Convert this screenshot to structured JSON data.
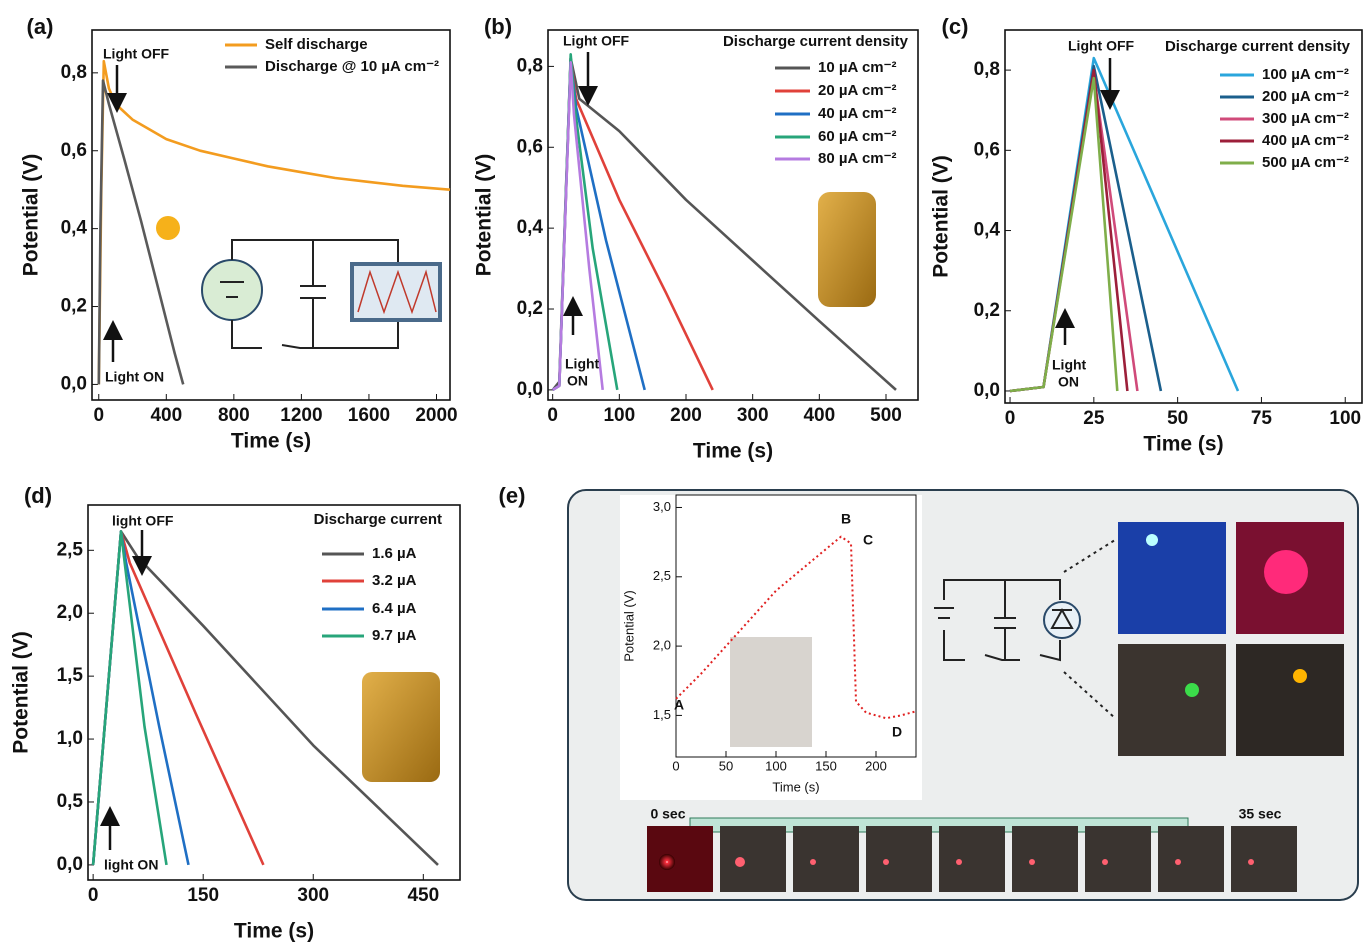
{
  "chart_data": [
    {
      "type": "line",
      "panel": "(a)",
      "x_label": "Time (s)",
      "y_label": "Potential (V)",
      "xlim": [
        -40,
        2080
      ],
      "ylim": [
        -0.04,
        0.91
      ],
      "xticks": [
        0,
        400,
        800,
        1200,
        1600,
        2000
      ],
      "yticks": [
        {
          "value": 0,
          "label": "0,0"
        },
        {
          "value": 0.2,
          "label": "0,2"
        },
        {
          "value": 0.4,
          "label": "0,4"
        },
        {
          "value": 0.6,
          "label": "0,6"
        },
        {
          "value": 0.8,
          "label": "0,8"
        }
      ],
      "series": [
        {
          "name": "Self discharge",
          "color": "#f39c1f",
          "x": [
            0,
            15,
            30,
            60,
            100,
            200,
            400,
            600,
            800,
            1000,
            1200,
            1400,
            1600,
            1800,
            2080
          ],
          "values": [
            0,
            0.5,
            0.83,
            0.76,
            0.72,
            0.68,
            0.63,
            0.6,
            0.58,
            0.56,
            0.545,
            0.53,
            0.52,
            0.51,
            0.5
          ]
        },
        {
          "name": "Discharge @ 10 µA cm⁻²",
          "color": "#5a5a5a",
          "x": [
            0,
            10,
            25,
            60,
            150,
            250,
            350,
            450,
            500
          ],
          "values": [
            0,
            0.4,
            0.78,
            0.72,
            0.58,
            0.42,
            0.25,
            0.08,
            0
          ]
        }
      ],
      "annotations": [
        "Light OFF",
        "Light ON"
      ]
    },
    {
      "type": "line",
      "panel": "(b)",
      "x_label": "Time (s)",
      "y_label": "Potential (V)",
      "xlim": [
        -7,
        548
      ],
      "ylim": [
        -0.025,
        0.89
      ],
      "xticks": [
        0,
        100,
        200,
        300,
        400,
        500
      ],
      "yticks": [
        {
          "value": 0,
          "label": "0,0"
        },
        {
          "value": 0.2,
          "label": "0,2"
        },
        {
          "value": 0.4,
          "label": "0,4"
        },
        {
          "value": 0.6,
          "label": "0,6"
        },
        {
          "value": 0.8,
          "label": "0,8"
        }
      ],
      "legend_title": "Discharge current density",
      "series": [
        {
          "name": "10 µA cm⁻²",
          "color": "#555555",
          "x": [
            0,
            10,
            20,
            27,
            40,
            100,
            200,
            300,
            400,
            515
          ],
          "values": [
            0,
            0.02,
            0.5,
            0.82,
            0.72,
            0.64,
            0.47,
            0.32,
            0.17,
            0
          ]
        },
        {
          "name": "20 µA cm⁻²",
          "color": "#e0413a",
          "x": [
            0,
            10,
            27,
            35,
            100,
            170,
            240
          ],
          "values": [
            0,
            0.01,
            0.82,
            0.72,
            0.47,
            0.24,
            0
          ]
        },
        {
          "name": "40 µA cm⁻²",
          "color": "#1f6fc4",
          "x": [
            0,
            10,
            27,
            35,
            80,
            138
          ],
          "values": [
            0,
            0.01,
            0.82,
            0.7,
            0.37,
            0
          ]
        },
        {
          "name": "60 µA cm⁻²",
          "color": "#27a57a",
          "x": [
            0,
            10,
            27,
            33,
            60,
            97
          ],
          "values": [
            0,
            0.01,
            0.83,
            0.7,
            0.35,
            0
          ]
        },
        {
          "name": "80 µA cm⁻²",
          "color": "#b57be0",
          "x": [
            0,
            10,
            27,
            32,
            55,
            75
          ],
          "values": [
            0,
            0.01,
            0.81,
            0.68,
            0.3,
            0
          ]
        }
      ],
      "annotations": [
        "Light OFF",
        "Light",
        "ON"
      ]
    },
    {
      "type": "line",
      "panel": "(c)",
      "x_label": "Time (s)",
      "y_label": "Potential (V)",
      "xlim": [
        -1.5,
        105
      ],
      "ylim": [
        -0.03,
        0.9
      ],
      "xticks": [
        0,
        25,
        50,
        75,
        100
      ],
      "yticks": [
        {
          "value": 0,
          "label": "0,0"
        },
        {
          "value": 0.2,
          "label": "0,2"
        },
        {
          "value": 0.4,
          "label": "0,4"
        },
        {
          "value": 0.6,
          "label": "0,6"
        },
        {
          "value": 0.8,
          "label": "0,8"
        }
      ],
      "legend_title": "Discharge current density",
      "series": [
        {
          "name": "100 µA cm⁻²",
          "color": "#2aa6dc",
          "x": [
            0,
            10,
            25,
            68
          ],
          "values": [
            0,
            0.01,
            0.83,
            0
          ]
        },
        {
          "name": "200 µA cm⁻²",
          "color": "#1b5f8c",
          "x": [
            0,
            10,
            25,
            45
          ],
          "values": [
            0,
            0.01,
            0.81,
            0
          ]
        },
        {
          "name": "300 µA cm⁻²",
          "color": "#d04a7a",
          "x": [
            0,
            10,
            25,
            38
          ],
          "values": [
            0,
            0.01,
            0.79,
            0
          ]
        },
        {
          "name": "400 µA cm⁻²",
          "color": "#9c1f3a",
          "x": [
            0,
            10,
            25,
            35
          ],
          "values": [
            0,
            0.01,
            0.8,
            0
          ]
        },
        {
          "name": "500 µA cm⁻²",
          "color": "#7fae4a",
          "x": [
            0,
            10,
            25,
            32
          ],
          "values": [
            0,
            0.01,
            0.78,
            0
          ]
        }
      ],
      "annotations": [
        "Light OFF",
        "Light",
        "ON"
      ]
    },
    {
      "type": "line",
      "panel": "(d)",
      "x_label": "Time (s)",
      "y_label": "Potential (V)",
      "xlim": [
        -7,
        500
      ],
      "ylim": [
        -0.12,
        2.86
      ],
      "xticks": [
        0,
        150,
        300,
        450
      ],
      "yticks": [
        {
          "value": 0,
          "label": "0,0"
        },
        {
          "value": 0.5,
          "label": "0,5"
        },
        {
          "value": 1,
          "label": "1,0"
        },
        {
          "value": 1.5,
          "label": "1,5"
        },
        {
          "value": 2,
          "label": "2,0"
        },
        {
          "value": 2.5,
          "label": "2,5"
        }
      ],
      "legend_title": "Discharge current",
      "series": [
        {
          "name": "1.6 µA",
          "color": "#555555",
          "x": [
            0,
            38,
            60,
            150,
            300,
            470
          ],
          "values": [
            0,
            2.65,
            2.45,
            1.9,
            0.95,
            0
          ]
        },
        {
          "name": "3.2 µA",
          "color": "#e0413a",
          "x": [
            0,
            38,
            50,
            140,
            232
          ],
          "values": [
            0,
            2.65,
            2.4,
            1.2,
            0
          ]
        },
        {
          "name": "6.4 µA",
          "color": "#1f6fc4",
          "x": [
            0,
            38,
            45,
            90,
            130
          ],
          "values": [
            0,
            2.65,
            2.4,
            1.1,
            0
          ]
        },
        {
          "name": "9.7 µA",
          "color": "#27a57a",
          "x": [
            0,
            38,
            43,
            70,
            100
          ],
          "values": [
            0,
            2.65,
            2.4,
            1.1,
            0
          ]
        }
      ],
      "annotations": [
        "light OFF",
        "light ON"
      ]
    },
    {
      "type": "line",
      "panel": "(e)",
      "x_label": "Time (s)",
      "y_label": "Potential (V)",
      "xlim": [
        0,
        240
      ],
      "ylim": [
        1.2,
        3.09
      ],
      "xticks": [
        0,
        50,
        100,
        150,
        200
      ],
      "yticks": [
        {
          "value": 1.5,
          "label": "1,5"
        },
        {
          "value": 2,
          "label": "2,0"
        },
        {
          "value": 2.5,
          "label": "2,5"
        },
        {
          "value": 3,
          "label": "3,0"
        }
      ],
      "series": [
        {
          "color": "#e02020",
          "dotted": true,
          "x": [
            0,
            25,
            50,
            75,
            100,
            125,
            150,
            165,
            175,
            180,
            190,
            210,
            225,
            240
          ],
          "values": [
            1.62,
            1.8,
            2.0,
            2.2,
            2.4,
            2.55,
            2.7,
            2.79,
            2.74,
            1.6,
            1.52,
            1.48,
            1.5,
            1.53
          ]
        }
      ],
      "annotations": [
        "A",
        "B",
        "C",
        "D",
        "0 sec",
        "35 sec"
      ]
    }
  ]
}
